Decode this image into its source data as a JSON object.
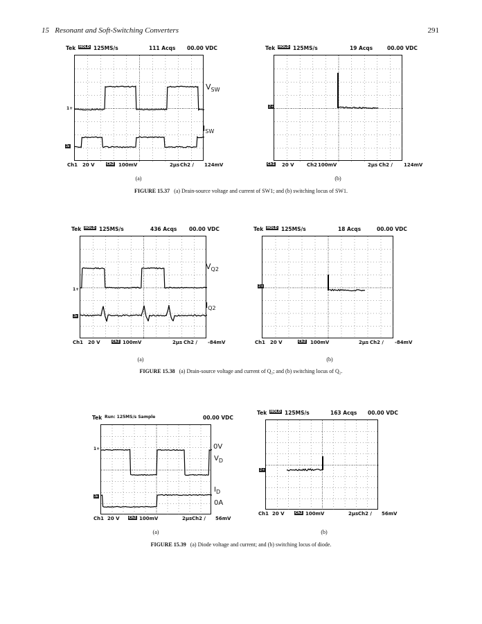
{
  "running_head": {
    "chapter": "15",
    "title": "Resonant and Soft-Switching Converters",
    "page": "291"
  },
  "figures": [
    {
      "caption_label": "FIGURE 15.37",
      "caption_text": "(a) Drain-source voltage and current of SW1; and (b) switching locus of SW1.",
      "scopes": [
        {
          "sub": "(a)",
          "header": {
            "brand": "Tek",
            "mode": "HOLD",
            "rate": "125MS/s",
            "acqs": "111 Acqs",
            "dc": "00.00 VDC"
          },
          "footer": {
            "ch1": "Ch1",
            "ch1_scale": "20 V",
            "ch2": "Ch2",
            "ch2_scale": "100mV",
            "time": "2μs",
            "trig": "Ch2 ∕",
            "level": "124mV"
          },
          "labels": [
            {
              "main": "V",
              "sub": "SW"
            },
            {
              "main": "I",
              "sub": "SW"
            }
          ]
        },
        {
          "sub": "(b)",
          "header": {
            "brand": "Tek",
            "mode": "HOLD",
            "rate": "125MS/s",
            "acqs": "19 Acqs",
            "dc": "00.00 VDC"
          },
          "footer": {
            "ch1": "Ch1",
            "ch1_scale": "20 V",
            "ch2": "Ch2",
            "ch2_scale": "100mV",
            "time": "2μs",
            "trig": "Ch2 ∕",
            "level": "124mV"
          },
          "labels": []
        }
      ]
    },
    {
      "caption_label": "FIGURE 15.38",
      "caption_text": "(a) Drain-source voltage and current of Q₂; and (b) switching locus of Q₂.",
      "scopes": [
        {
          "sub": "(a)",
          "header": {
            "brand": "Tek",
            "mode": "HOLD",
            "rate": "125MS/s",
            "acqs": "436 Acqs",
            "dc": "00.00 VDC"
          },
          "footer": {
            "ch1": "Ch1",
            "ch1_scale": "20 V",
            "ch2": "Ch2",
            "ch2_scale": "100mV",
            "time": "2μs",
            "trig": "Ch2 ∕",
            "level": "-84mV"
          },
          "labels": [
            {
              "main": "V",
              "sub": "Q2"
            },
            {
              "main": "I",
              "sub": "Q2"
            }
          ]
        },
        {
          "sub": "(b)",
          "header": {
            "brand": "Tek",
            "mode": "HOLD",
            "rate": "125MS/s",
            "acqs": "18 Acqs",
            "dc": "00.00 VDC"
          },
          "footer": {
            "ch1": "Ch1",
            "ch1_scale": "20 V",
            "ch2": "Ch2",
            "ch2_scale": "100mV",
            "time": "2μs",
            "trig": "Ch2 ∕",
            "level": "-84mV"
          },
          "labels": []
        }
      ]
    },
    {
      "caption_label": "FIGURE 15.39",
      "caption_text": "(a) Diode voltage and current; and (b) switching locus of diode.",
      "scopes": [
        {
          "sub": "(a)",
          "header": {
            "brand": "Tek",
            "mode": "Run: 125MS/s Sample",
            "rate": "",
            "acqs": "",
            "dc": "00.00 VDC"
          },
          "footer": {
            "ch1": "Ch1",
            "ch1_scale": "20 V",
            "ch2": "Ch2",
            "ch2_scale": "100mV",
            "time": "2μs",
            "trig": "Ch2 ∕",
            "level": "56mV"
          },
          "labels": [
            {
              "main": "0V",
              "sub": ""
            },
            {
              "main": "V",
              "sub": "D"
            },
            {
              "main": "I",
              "sub": "D"
            },
            {
              "main": "0A",
              "sub": ""
            }
          ]
        },
        {
          "sub": "(b)",
          "header": {
            "brand": "Tek",
            "mode": "HOLD",
            "rate": "125MS/s",
            "acqs": "163 Acqs",
            "dc": "00.00 VDC"
          },
          "footer": {
            "ch1": "Ch1",
            "ch1_scale": "20 V",
            "ch2": "Ch2",
            "ch2_scale": "100mV",
            "time": "2μs",
            "trig": "Ch2 ∕",
            "level": "56mV"
          },
          "labels": []
        }
      ]
    }
  ]
}
